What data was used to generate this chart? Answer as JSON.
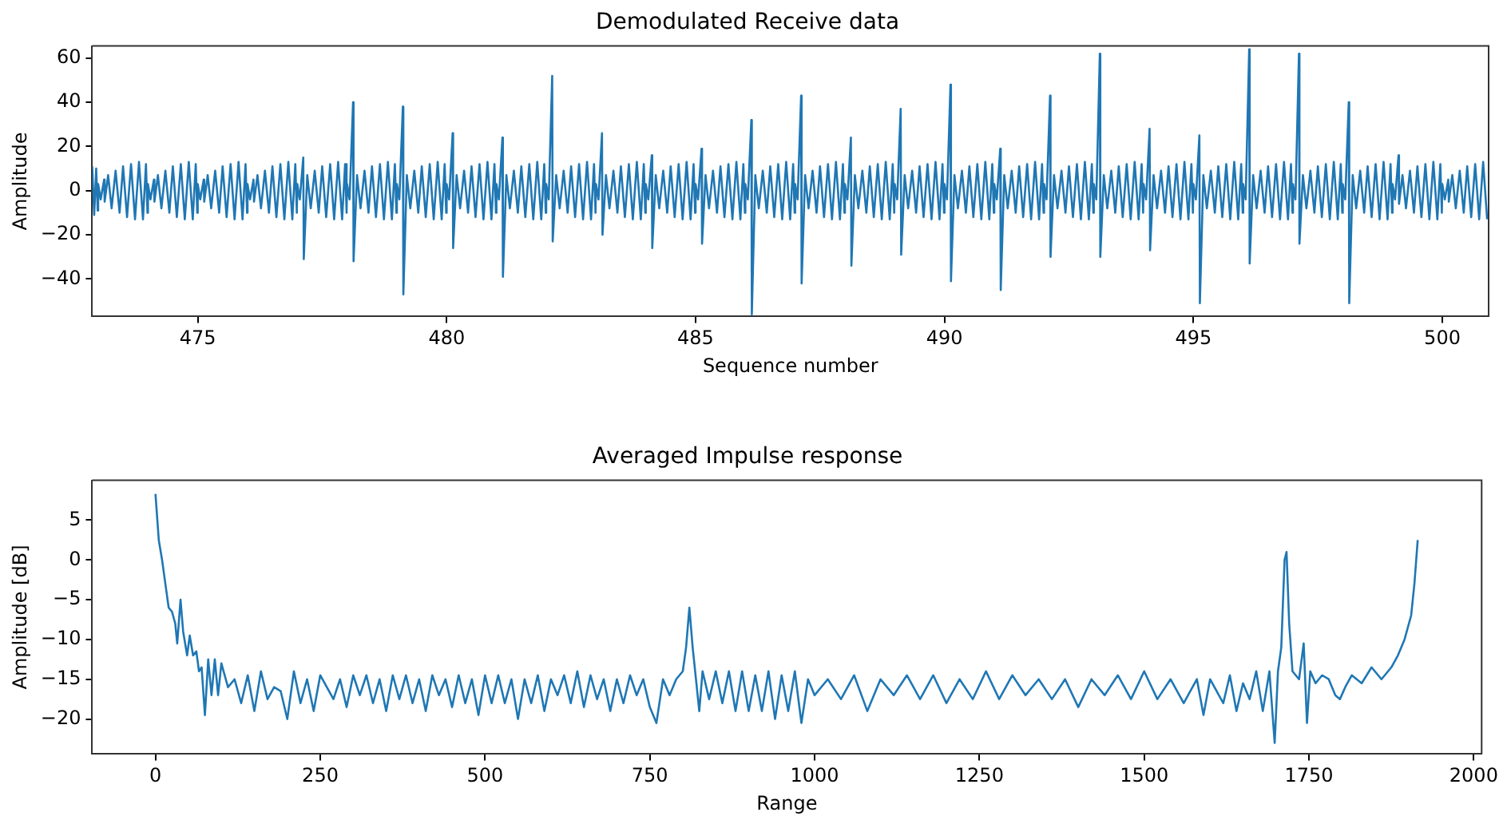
{
  "chart_data": [
    {
      "type": "line",
      "title": "Demodulated Receive data",
      "xlabel": "Sequence number",
      "ylabel": "Amplitude",
      "color": "#1f77b4",
      "marker": "none",
      "grid": false,
      "xlim": [
        472.88,
        500.93
      ],
      "ylim": [
        -57,
        65.5
      ],
      "xticks": [
        475,
        480,
        485,
        490,
        495,
        500
      ],
      "yticks": [
        -40,
        -20,
        0,
        20,
        40,
        60
      ],
      "x": [
        472.88,
        472.92,
        472.96,
        472.99,
        473,
        473.05,
        473.12,
        473.13,
        473.2,
        473.27,
        473.35,
        473.43,
        473.5,
        473.58,
        473.66,
        473.74,
        473.82,
        473.9,
        473.96,
        473.99,
        474,
        474.05,
        474.12,
        474.13,
        474.2,
        474.27,
        474.35,
        474.43,
        474.5,
        474.58,
        474.66,
        474.74,
        474.82,
        474.9,
        474.96,
        474.99,
        475,
        475.05,
        475.12,
        475.13,
        475.2,
        475.27,
        475.35,
        475.43,
        475.5,
        475.58,
        475.66,
        475.74,
        475.82,
        475.9,
        475.96,
        475.99,
        476,
        476.05,
        476.12,
        476.13,
        476.2,
        476.27,
        476.35,
        476.43,
        476.5,
        476.58,
        476.66,
        476.74,
        476.82,
        476.9,
        476.96,
        476.99,
        477,
        477.05,
        477.12,
        477.13,
        477.2,
        477.27,
        477.35,
        477.43,
        477.5,
        477.58,
        477.66,
        477.74,
        477.82,
        477.9,
        477.96,
        477.99,
        478,
        478.05,
        478.12,
        478.13,
        478.2,
        478.27,
        478.35,
        478.43,
        478.5,
        478.58,
        478.66,
        478.74,
        478.82,
        478.9,
        478.96,
        478.99,
        479,
        479.05,
        479.12,
        479.13,
        479.2,
        479.27,
        479.35,
        479.43,
        479.5,
        479.58,
        479.66,
        479.74,
        479.82,
        479.9,
        479.96,
        479.99,
        480,
        480.05,
        480.12,
        480.13,
        480.2,
        480.27,
        480.35,
        480.43,
        480.5,
        480.58,
        480.66,
        480.74,
        480.82,
        480.9,
        480.96,
        480.99,
        481,
        481.05,
        481.12,
        481.13,
        481.2,
        481.27,
        481.35,
        481.43,
        481.5,
        481.58,
        481.66,
        481.74,
        481.82,
        481.9,
        481.96,
        481.99,
        482,
        482.05,
        482.12,
        482.13,
        482.2,
        482.27,
        482.35,
        482.43,
        482.5,
        482.58,
        482.66,
        482.74,
        482.82,
        482.9,
        482.96,
        482.99,
        483,
        483.05,
        483.12,
        483.13,
        483.2,
        483.27,
        483.35,
        483.43,
        483.5,
        483.58,
        483.66,
        483.74,
        483.82,
        483.9,
        483.96,
        483.99,
        484,
        484.05,
        484.12,
        484.13,
        484.2,
        484.27,
        484.35,
        484.43,
        484.5,
        484.58,
        484.66,
        484.74,
        484.82,
        484.9,
        484.96,
        484.99,
        485,
        485.05,
        485.12,
        485.13,
        485.2,
        485.27,
        485.35,
        485.43,
        485.5,
        485.58,
        485.66,
        485.74,
        485.82,
        485.9,
        485.96,
        485.99,
        486,
        486.05,
        486.12,
        486.13,
        486.2,
        486.27,
        486.35,
        486.43,
        486.5,
        486.58,
        486.66,
        486.74,
        486.82,
        486.9,
        486.96,
        486.99,
        487,
        487.05,
        487.12,
        487.13,
        487.2,
        487.27,
        487.35,
        487.43,
        487.5,
        487.58,
        487.66,
        487.74,
        487.82,
        487.9,
        487.96,
        487.99,
        488,
        488.05,
        488.12,
        488.13,
        488.2,
        488.27,
        488.35,
        488.43,
        488.5,
        488.58,
        488.66,
        488.74,
        488.82,
        488.9,
        488.96,
        488.99,
        489,
        489.05,
        489.12,
        489.13,
        489.2,
        489.27,
        489.35,
        489.43,
        489.5,
        489.58,
        489.66,
        489.74,
        489.82,
        489.9,
        489.96,
        489.99,
        490,
        490.05,
        490.12,
        490.13,
        490.2,
        490.27,
        490.35,
        490.43,
        490.5,
        490.58,
        490.66,
        490.74,
        490.82,
        490.9,
        490.96,
        490.99,
        491,
        491.05,
        491.12,
        491.13,
        491.2,
        491.27,
        491.35,
        491.43,
        491.5,
        491.58,
        491.66,
        491.74,
        491.82,
        491.9,
        491.96,
        491.99,
        492,
        492.05,
        492.12,
        492.13,
        492.2,
        492.27,
        492.35,
        492.43,
        492.5,
        492.58,
        492.66,
        492.74,
        492.82,
        492.9,
        492.96,
        492.99,
        493,
        493.05,
        493.12,
        493.13,
        493.2,
        493.27,
        493.35,
        493.43,
        493.5,
        493.58,
        493.66,
        493.74,
        493.82,
        493.9,
        493.96,
        493.99,
        494,
        494.05,
        494.12,
        494.13,
        494.2,
        494.27,
        494.35,
        494.43,
        494.5,
        494.58,
        494.66,
        494.74,
        494.82,
        494.9,
        494.96,
        494.99,
        495,
        495.05,
        495.12,
        495.13,
        495.2,
        495.27,
        495.35,
        495.43,
        495.5,
        495.58,
        495.66,
        495.74,
        495.82,
        495.9,
        495.96,
        495.99,
        496,
        496.05,
        496.12,
        496.13,
        496.2,
        496.27,
        496.35,
        496.43,
        496.5,
        496.58,
        496.66,
        496.74,
        496.82,
        496.9,
        496.96,
        496.99,
        497,
        497.05,
        497.12,
        497.13,
        497.2,
        497.27,
        497.35,
        497.43,
        497.5,
        497.58,
        497.66,
        497.74,
        497.82,
        497.9,
        497.96,
        497.99,
        498,
        498.05,
        498.12,
        498.13,
        498.2,
        498.27,
        498.35,
        498.43,
        498.5,
        498.58,
        498.66,
        498.74,
        498.82,
        498.9,
        498.96,
        498.99,
        499,
        499.05,
        499.12,
        499.13,
        499.2,
        499.27,
        499.35,
        499.43,
        499.5,
        499.58,
        499.66,
        499.74,
        499.82,
        499.9,
        499.96,
        499.99,
        500,
        500.05,
        500.12,
        500.13,
        500.2,
        500.27,
        500.35,
        500.43,
        500.5,
        500.58,
        500.66,
        500.74,
        500.82,
        500.9
      ],
      "values": [
        11,
        -11,
        10,
        -9,
        3,
        -4,
        5,
        -5,
        7,
        -8,
        9,
        -10,
        11,
        -12,
        12,
        -13,
        13,
        -13,
        12,
        -10,
        3,
        -4,
        5,
        -5,
        7,
        -8,
        9,
        -10,
        11,
        -12,
        12,
        -13,
        13,
        -13,
        12,
        -10,
        3,
        -4,
        5,
        -5,
        7,
        -8,
        9,
        -10,
        11,
        -12,
        12,
        -13,
        13,
        -13,
        12,
        -10,
        3,
        -4,
        5,
        -5,
        7,
        -8,
        9,
        -10,
        11,
        -12,
        12,
        -13,
        13,
        -13,
        12,
        -10,
        3,
        -4,
        15,
        -31,
        7,
        -8,
        9,
        -10,
        11,
        -12,
        12,
        -13,
        13,
        -13,
        12,
        -10,
        3,
        -4,
        40,
        -32,
        7,
        -8,
        9,
        -10,
        11,
        -12,
        12,
        -13,
        13,
        -13,
        12,
        -10,
        3,
        -4,
        38,
        -47,
        7,
        -8,
        9,
        -10,
        11,
        -12,
        12,
        -13,
        13,
        -13,
        12,
        -10,
        3,
        -4,
        26,
        -26,
        7,
        -8,
        9,
        -10,
        11,
        -12,
        12,
        -13,
        13,
        -13,
        12,
        -10,
        3,
        -4,
        24,
        -39,
        7,
        -8,
        9,
        -10,
        11,
        -12,
        12,
        -13,
        13,
        -13,
        12,
        -10,
        3,
        -4,
        52,
        -23,
        7,
        -8,
        9,
        -10,
        11,
        -12,
        12,
        -13,
        13,
        -13,
        12,
        -10,
        3,
        -4,
        26,
        -20,
        7,
        -8,
        9,
        -10,
        11,
        -12,
        12,
        -13,
        13,
        -13,
        12,
        -10,
        3,
        -4,
        16,
        -26,
        7,
        -8,
        9,
        -10,
        11,
        -12,
        12,
        -13,
        13,
        -13,
        12,
        -10,
        3,
        -4,
        19,
        -24,
        7,
        -8,
        9,
        -10,
        11,
        -12,
        12,
        -13,
        13,
        -13,
        12,
        -10,
        3,
        -4,
        32,
        -56,
        7,
        -8,
        9,
        -10,
        11,
        -12,
        12,
        -13,
        13,
        -13,
        12,
        -10,
        3,
        -4,
        43,
        -42,
        7,
        -8,
        9,
        -10,
        11,
        -12,
        12,
        -13,
        13,
        -13,
        12,
        -10,
        3,
        -4,
        24,
        -34,
        7,
        -8,
        9,
        -10,
        11,
        -12,
        12,
        -13,
        13,
        -13,
        12,
        -10,
        3,
        -4,
        37,
        -29,
        7,
        -8,
        9,
        -10,
        11,
        -12,
        12,
        -13,
        13,
        -13,
        12,
        -10,
        3,
        -4,
        48,
        -41,
        7,
        -8,
        9,
        -10,
        11,
        -12,
        12,
        -13,
        13,
        -13,
        12,
        -10,
        3,
        -4,
        19,
        -45,
        7,
        -8,
        9,
        -10,
        11,
        -12,
        12,
        -13,
        13,
        -13,
        12,
        -10,
        3,
        -4,
        43,
        -30,
        7,
        -8,
        9,
        -10,
        11,
        -12,
        12,
        -13,
        13,
        -13,
        12,
        -10,
        3,
        -4,
        62,
        -30,
        7,
        -8,
        9,
        -10,
        11,
        -12,
        12,
        -13,
        13,
        -13,
        12,
        -10,
        3,
        -4,
        28,
        -27,
        7,
        -8,
        9,
        -10,
        11,
        -12,
        12,
        -13,
        13,
        -13,
        12,
        -10,
        3,
        -4,
        25,
        -51,
        7,
        -8,
        9,
        -10,
        11,
        -12,
        12,
        -13,
        13,
        -13,
        12,
        -10,
        3,
        -4,
        64,
        -33,
        7,
        -8,
        9,
        -10,
        11,
        -12,
        12,
        -13,
        13,
        -13,
        12,
        -10,
        3,
        -4,
        62,
        -24,
        7,
        -8,
        9,
        -10,
        11,
        -12,
        12,
        -13,
        13,
        -13,
        12,
        -10,
        3,
        -4,
        40,
        -51,
        7,
        -8,
        9,
        -10,
        11,
        -12,
        12,
        -13,
        13,
        -13,
        12,
        -10,
        3,
        -4,
        16,
        -6,
        7,
        -8,
        9,
        -10,
        11,
        -12,
        12,
        -13,
        13,
        -13,
        12,
        -10,
        3,
        -4,
        5,
        -5,
        7,
        -8,
        9,
        -10,
        11,
        -12,
        12,
        -13,
        13,
        -13
      ]
    },
    {
      "type": "line",
      "title": "Averaged Impulse response",
      "xlabel": "Range",
      "ylabel": "Amplitude [dB]",
      "color": "#1f77b4",
      "marker": "none",
      "grid": false,
      "xlim": [
        -96,
        2012
      ],
      "ylim": [
        -24.4,
        10
      ],
      "xticks": [
        0,
        250,
        500,
        750,
        1000,
        1250,
        1500,
        1750,
        2000
      ],
      "yticks": [
        -20,
        -15,
        -10,
        -5,
        0,
        5
      ],
      "x": [
        0,
        5,
        10,
        15,
        20,
        25,
        30,
        33,
        38,
        42,
        48,
        52,
        57,
        62,
        66,
        70,
        75,
        80,
        85,
        90,
        95,
        100,
        110,
        120,
        130,
        140,
        150,
        160,
        170,
        180,
        190,
        200,
        210,
        220,
        230,
        240,
        250,
        260,
        270,
        280,
        290,
        300,
        310,
        320,
        330,
        340,
        350,
        360,
        370,
        380,
        390,
        400,
        410,
        420,
        430,
        440,
        450,
        460,
        470,
        480,
        490,
        500,
        510,
        520,
        530,
        540,
        550,
        560,
        570,
        580,
        590,
        600,
        610,
        620,
        630,
        640,
        650,
        660,
        670,
        680,
        690,
        700,
        710,
        720,
        730,
        740,
        750,
        760,
        770,
        780,
        790,
        800,
        805,
        810,
        815,
        820,
        825,
        830,
        840,
        850,
        860,
        870,
        880,
        890,
        900,
        910,
        920,
        930,
        940,
        950,
        960,
        970,
        980,
        990,
        1000,
        1020,
        1040,
        1060,
        1080,
        1100,
        1120,
        1140,
        1160,
        1180,
        1200,
        1220,
        1240,
        1260,
        1280,
        1300,
        1320,
        1340,
        1360,
        1380,
        1400,
        1420,
        1440,
        1460,
        1480,
        1500,
        1520,
        1540,
        1560,
        1580,
        1590,
        1600,
        1620,
        1630,
        1640,
        1650,
        1660,
        1670,
        1680,
        1690,
        1698,
        1703,
        1708,
        1713,
        1716,
        1720,
        1725,
        1735,
        1742,
        1747,
        1752,
        1760,
        1770,
        1780,
        1790,
        1797,
        1805,
        1815,
        1830,
        1845,
        1860,
        1875,
        1885,
        1895,
        1905,
        1910,
        1915
      ],
      "values": [
        8.3,
        2.5,
        0,
        -3,
        -6,
        -6.5,
        -8,
        -10.5,
        -5,
        -9,
        -12,
        -9.5,
        -12,
        -11.5,
        -14,
        -13.5,
        -19.5,
        -12.5,
        -17,
        -12.5,
        -17,
        -13,
        -16,
        -15,
        -18,
        -14.5,
        -19,
        -14,
        -17.5,
        -16,
        -16.5,
        -20,
        -14,
        -18,
        -15,
        -19,
        -14.5,
        -16,
        -17.5,
        -15,
        -18.5,
        -14.5,
        -17,
        -14.5,
        -18,
        -15,
        -19,
        -14.5,
        -17.5,
        -14.5,
        -18,
        -15,
        -19,
        -14.5,
        -17,
        -15,
        -18.5,
        -14.5,
        -18,
        -15,
        -19.5,
        -14.5,
        -18,
        -14.5,
        -18,
        -15,
        -20,
        -15,
        -18,
        -14.5,
        -19,
        -15,
        -17,
        -14.5,
        -18,
        -14,
        -18.5,
        -14.5,
        -17.5,
        -15,
        -19,
        -15,
        -18,
        -14.5,
        -17,
        -15,
        -18.5,
        -20.5,
        -15,
        -17,
        -15,
        -14,
        -11,
        -6,
        -11,
        -15,
        -19,
        -14,
        -17.5,
        -14,
        -18,
        -14,
        -19,
        -14,
        -19,
        -14.5,
        -19,
        -14,
        -20,
        -14.5,
        -19,
        -14,
        -20.5,
        -15,
        -17,
        -15,
        -17.5,
        -14.5,
        -19,
        -15,
        -17,
        -14.5,
        -17.5,
        -14.5,
        -18,
        -15,
        -17.5,
        -14,
        -17.5,
        -14.5,
        -17,
        -15,
        -17.5,
        -15,
        -18.5,
        -15,
        -17,
        -14.5,
        -17.5,
        -14,
        -17.5,
        -15,
        -18,
        -15,
        -19.5,
        -15,
        -18,
        -14.5,
        -19,
        -15.5,
        -17.5,
        -14,
        -19,
        -14,
        -23,
        -14,
        -11,
        0,
        1,
        -8,
        -14,
        -15,
        -10.5,
        -20.5,
        -14,
        -15.5,
        -14.5,
        -15,
        -17,
        -17.5,
        -16,
        -14.5,
        -15.5,
        -13.5,
        -15,
        -13.5,
        -12,
        -10,
        -7,
        -3,
        2.5
      ]
    }
  ]
}
